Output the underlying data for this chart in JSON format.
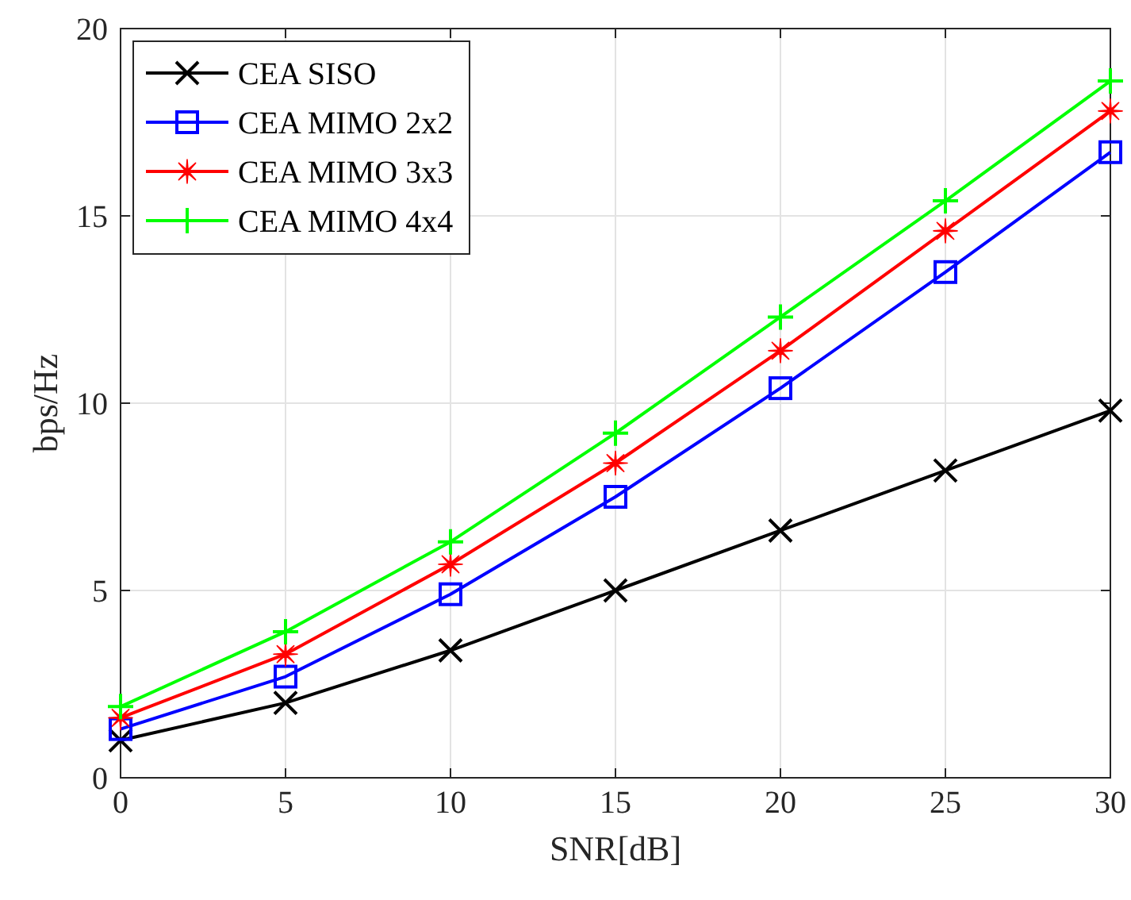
{
  "chart_data": {
    "type": "line",
    "xlabel": "SNR[dB]",
    "ylabel": "bps/Hz",
    "x": [
      0,
      5,
      10,
      15,
      20,
      25,
      30
    ],
    "xlim": [
      0,
      30
    ],
    "xticks": [
      0,
      5,
      10,
      15,
      20,
      25,
      30
    ],
    "ylim": [
      0,
      20
    ],
    "yticks": [
      0,
      5,
      10,
      15,
      20
    ],
    "grid": true,
    "legend": "top left",
    "line_style": "solid",
    "series": [
      {
        "name": "CEA SISO",
        "color": "#000000",
        "marker": "cross",
        "values": [
          1.0,
          2.0,
          3.4,
          5.0,
          6.6,
          8.2,
          9.8
        ]
      },
      {
        "name": "CEA MIMO 2x2",
        "color": "#0000ff",
        "marker": "square",
        "values": [
          1.3,
          2.7,
          4.9,
          7.5,
          10.4,
          13.5,
          16.7
        ]
      },
      {
        "name": "CEA MIMO 3x3",
        "color": "#ff0000",
        "marker": "star",
        "values": [
          1.6,
          3.3,
          5.7,
          8.4,
          11.4,
          14.6,
          17.8
        ]
      },
      {
        "name": "CEA MIMO 4x4",
        "color": "#00ff00",
        "marker": "plus",
        "values": [
          1.9,
          3.9,
          6.3,
          9.2,
          12.3,
          15.4,
          18.6
        ]
      }
    ]
  }
}
